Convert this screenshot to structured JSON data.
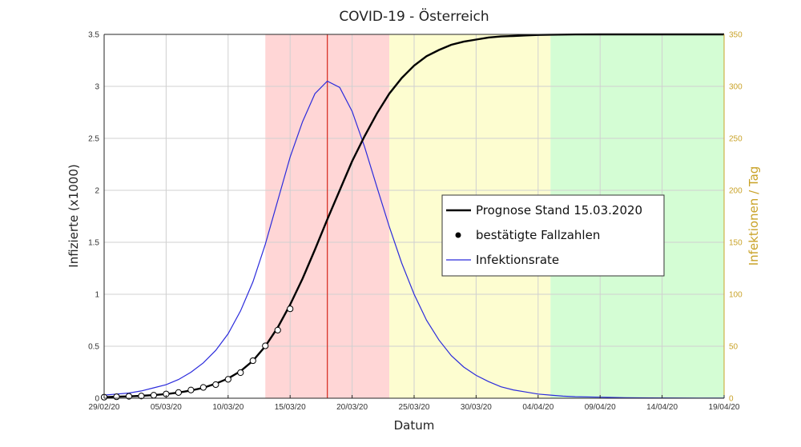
{
  "chart_data": {
    "type": "line",
    "title": "COVID-19 - Österreich",
    "xlabel": "Datum",
    "ylabel": "Infizierte (x1000)",
    "y2label": "Infektionen / Tag",
    "x_ticks": [
      "29/02/20",
      "05/03/20",
      "10/03/20",
      "15/03/20",
      "20/03/20",
      "25/03/20",
      "30/03/20",
      "04/04/20",
      "09/04/20",
      "14/04/20",
      "19/04/20"
    ],
    "xlim_days": [
      0,
      50
    ],
    "ylim": [
      0,
      3.5
    ],
    "y_ticks": [
      "0",
      "0.5",
      "1",
      "1.5",
      "2",
      "2.5",
      "3",
      "3.5"
    ],
    "y2lim": [
      0,
      350
    ],
    "y2_ticks": [
      "0",
      "50",
      "100",
      "150",
      "200",
      "250",
      "300",
      "350"
    ],
    "grid": true,
    "legend_position": "center-right",
    "colors": {
      "prognose": "#000000",
      "infektionsrate": "#2b2bdc",
      "vline": "#d9342b",
      "right_axis": "#c9a227",
      "band_red": "#ffd6d6",
      "band_yellow": "#fdfdd0",
      "band_green": "#d4fdd4",
      "grid": "#d0d0d0"
    },
    "bands": [
      {
        "name": "red",
        "from_day": 13,
        "to_day": 23
      },
      {
        "name": "yellow",
        "from_day": 23,
        "to_day": 36
      },
      {
        "name": "green",
        "from_day": 36,
        "to_day": 50
      }
    ],
    "vline_day": 18,
    "series": [
      {
        "name": "Prognose Stand 15.03.2020",
        "axis": "left",
        "style": "line",
        "x": [
          0,
          1,
          2,
          3,
          4,
          5,
          6,
          7,
          8,
          9,
          10,
          11,
          12,
          13,
          14,
          15,
          16,
          17,
          18,
          19,
          20,
          21,
          22,
          23,
          24,
          25,
          26,
          27,
          28,
          29,
          30,
          31,
          32,
          33,
          34,
          35,
          36,
          38,
          40,
          42,
          44,
          46,
          48,
          50
        ],
        "values": [
          0.01,
          0.015,
          0.018,
          0.023,
          0.03,
          0.04,
          0.055,
          0.075,
          0.1,
          0.14,
          0.19,
          0.26,
          0.36,
          0.5,
          0.68,
          0.9,
          1.15,
          1.43,
          1.72,
          2.0,
          2.28,
          2.52,
          2.74,
          2.93,
          3.08,
          3.2,
          3.29,
          3.35,
          3.4,
          3.43,
          3.45,
          3.47,
          3.48,
          3.485,
          3.49,
          3.495,
          3.497,
          3.499,
          3.5,
          3.5,
          3.5,
          3.5,
          3.5,
          3.5
        ]
      },
      {
        "name": "bestätigte Fallzahlen",
        "axis": "left",
        "style": "markers",
        "x": [
          0,
          1,
          2,
          3,
          4,
          5,
          6,
          7,
          8,
          9,
          10,
          11,
          12,
          13,
          14,
          15
        ],
        "values": [
          0.01,
          0.014,
          0.018,
          0.021,
          0.029,
          0.041,
          0.055,
          0.079,
          0.104,
          0.131,
          0.182,
          0.246,
          0.361,
          0.504,
          0.655,
          0.86
        ]
      },
      {
        "name": "Infektionsrate",
        "axis": "right",
        "style": "line",
        "x": [
          0,
          1,
          2,
          3,
          4,
          5,
          6,
          7,
          8,
          9,
          10,
          11,
          12,
          13,
          14,
          15,
          16,
          17,
          18,
          19,
          20,
          21,
          22,
          23,
          24,
          25,
          26,
          27,
          28,
          29,
          30,
          31,
          32,
          33,
          34,
          35,
          36,
          37,
          38,
          40,
          42,
          44,
          46,
          48,
          50
        ],
        "values": [
          3,
          4,
          5,
          7,
          10,
          13,
          18,
          25,
          34,
          46,
          62,
          84,
          112,
          148,
          190,
          232,
          266,
          293,
          305,
          299,
          276,
          242,
          203,
          165,
          130,
          100,
          75,
          56,
          41,
          30,
          22,
          16,
          11,
          8,
          6,
          4,
          3,
          2,
          1.5,
          1,
          0.5,
          0.3,
          0.2,
          0.1,
          0.1
        ]
      }
    ]
  }
}
